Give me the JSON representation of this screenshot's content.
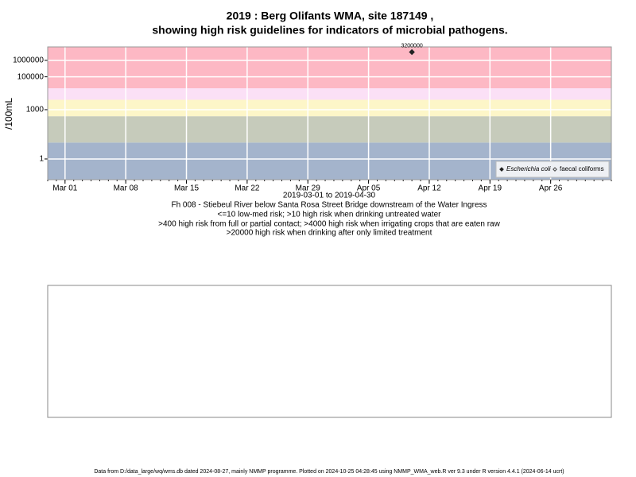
{
  "chart_data": {
    "type": "scatter",
    "title": "2019 : Berg Olifants WMA, site 187149 ,",
    "subtitle": "showing high risk guidelines for indicators of microbial pathogens.",
    "y_label": "/100mL",
    "x_label": "2019-03-01 to 2019-04-30",
    "notes": [
      "Fh 008 - Stiebeul River below Santa Rosa Street Bridge downstream of the Water Ingress",
      "<=10 low-med risk; >10 high risk when drinking untreated water",
      ">400 high risk from full or partial contact; >4000 high risk when irrigating crops that are eaten raw",
      ">20000 high risk when drinking after only limited treatment"
    ],
    "footer": "Data from D:/data_large/wq/wms.db dated 2024-08-27, mainly NMMP programme. Plotted on 2024-10-25 04:28:45 using NMMP_WMA_web.R ver 9.3 under R version 4.4.1 (2024-06-14 ucrt)",
    "log_y": true,
    "grid": true,
    "legend": "bottom-right",
    "xlim": [
      "2019-02-27",
      "2019-05-03"
    ],
    "ylim": [
      0.055,
      6600000
    ],
    "yticks": [
      1,
      1000,
      100000,
      1000000
    ],
    "xticks": [
      {
        "value": "2019-03-01",
        "label": "Mar 01"
      },
      {
        "value": "2019-03-08",
        "label": "Mar 08"
      },
      {
        "value": "2019-03-15",
        "label": "Mar 15"
      },
      {
        "value": "2019-03-22",
        "label": "Mar 22"
      },
      {
        "value": "2019-03-29",
        "label": "Mar 29"
      },
      {
        "value": "2019-04-05",
        "label": "Apr 05"
      },
      {
        "value": "2019-04-12",
        "label": "Apr 12"
      },
      {
        "value": "2019-04-19",
        "label": "Apr 19"
      },
      {
        "value": "2019-04-26",
        "label": "Apr 26"
      }
    ],
    "bands": [
      {
        "from": 0.055,
        "to": 10,
        "color": "#a4b4cc"
      },
      {
        "from": 10,
        "to": 400,
        "color": "#c6cbbb"
      },
      {
        "from": 400,
        "to": 4000,
        "color": "#fdf6c8"
      },
      {
        "from": 4000,
        "to": 20000,
        "color": "#fbe0f6"
      },
      {
        "from": 20000,
        "to": 6600000,
        "color": "#fdb8c4"
      }
    ],
    "x": [
      "2019-04-10"
    ],
    "series": [
      {
        "name": "Escherichia coli",
        "color": "#222222",
        "values": [
          3200000
        ]
      },
      {
        "name": "faecal coliforms",
        "color": "#444444",
        "values": [
          null
        ]
      }
    ]
  }
}
